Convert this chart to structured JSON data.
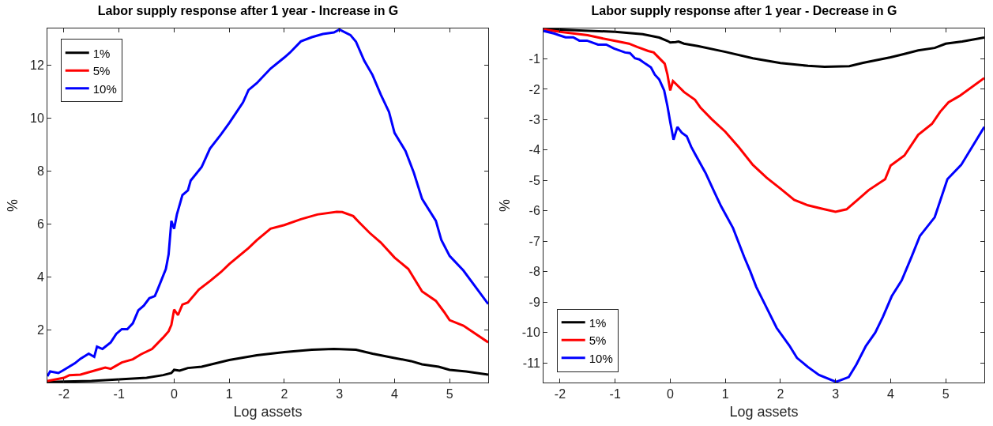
{
  "chart_data": [
    {
      "type": "line",
      "title": "Labor supply response after 1 year - Increase in G",
      "xlabel": "Log assets",
      "ylabel": "%",
      "xlim": [
        -2.3,
        5.7
      ],
      "xticks": [
        -2,
        -1,
        0,
        1,
        2,
        3,
        4,
        5
      ],
      "ylim": [
        0,
        13.4
      ],
      "yticks": [
        2,
        4,
        6,
        8,
        10,
        12
      ],
      "grid": false,
      "legend": "top left",
      "marker": "none",
      "line_style": "solid",
      "series": [
        {
          "name": "1%",
          "color": "#000000",
          "x": [
            -2.3,
            -1.5,
            -1,
            -0.5,
            -0.2,
            -0.05,
            0,
            0.1,
            0.25,
            0.5,
            1,
            1.5,
            2,
            2.5,
            2.9,
            3.3,
            3.6,
            4,
            4.3,
            4.5,
            4.8,
            5,
            5.3,
            5.7
          ],
          "values": [
            0.02,
            0.06,
            0.12,
            0.18,
            0.28,
            0.36,
            0.48,
            0.45,
            0.55,
            0.6,
            0.85,
            1.03,
            1.15,
            1.24,
            1.27,
            1.24,
            1.09,
            0.93,
            0.81,
            0.69,
            0.6,
            0.48,
            0.42,
            0.3
          ]
        },
        {
          "name": "5%",
          "color": "#ff0000",
          "x": [
            -2.3,
            -2,
            -1.9,
            -1.7,
            -1.5,
            -1.25,
            -1.15,
            -0.95,
            -0.75,
            -0.6,
            -0.4,
            -0.2,
            -0.1,
            -0.05,
            0,
            0.07,
            0.15,
            0.25,
            0.45,
            0.65,
            0.85,
            1,
            1.35,
            1.5,
            1.75,
            2,
            2.3,
            2.6,
            2.95,
            3.05,
            3.25,
            3.35,
            3.55,
            3.75,
            4,
            4.25,
            4.5,
            4.75,
            4.9,
            5,
            5.25,
            5.7
          ],
          "values": [
            0.06,
            0.18,
            0.28,
            0.3,
            0.42,
            0.57,
            0.52,
            0.76,
            0.88,
            1.07,
            1.27,
            1.7,
            1.94,
            2.18,
            2.76,
            2.55,
            2.95,
            3.03,
            3.52,
            3.84,
            4.18,
            4.48,
            5.09,
            5.39,
            5.82,
            5.96,
            6.18,
            6.36,
            6.46,
            6.45,
            6.3,
            6.08,
            5.66,
            5.3,
            4.73,
            4.3,
            3.45,
            3.09,
            2.67,
            2.36,
            2.15,
            1.52
          ]
        },
        {
          "name": "10%",
          "color": "#0000ff",
          "x": [
            -2.3,
            -2.25,
            -2.1,
            -2,
            -1.8,
            -1.7,
            -1.55,
            -1.45,
            -1.4,
            -1.3,
            -1.15,
            -1.05,
            -0.95,
            -0.85,
            -0.75,
            -0.65,
            -0.55,
            -0.45,
            -0.35,
            -0.3,
            -0.15,
            -0.1,
            -0.05,
            0,
            0.05,
            0.15,
            0.25,
            0.3,
            0.5,
            0.65,
            0.85,
            1,
            1.25,
            1.35,
            1.5,
            1.75,
            2,
            2.1,
            2.3,
            2.5,
            2.7,
            2.9,
            3,
            3.2,
            3.3,
            3.45,
            3.6,
            3.75,
            3.9,
            4,
            4.2,
            4.35,
            4.5,
            4.75,
            4.85,
            5,
            5.25,
            5.7
          ],
          "values": [
            0.24,
            0.42,
            0.36,
            0.48,
            0.73,
            0.9,
            1.09,
            0.97,
            1.36,
            1.27,
            1.52,
            1.84,
            2.02,
            2.02,
            2.24,
            2.73,
            2.91,
            3.19,
            3.27,
            3.52,
            4.3,
            4.85,
            6.12,
            5.82,
            6.36,
            7.09,
            7.27,
            7.64,
            8.16,
            8.85,
            9.39,
            9.82,
            10.6,
            11.07,
            11.33,
            11.88,
            12.3,
            12.48,
            12.91,
            13.07,
            13.19,
            13.25,
            13.36,
            13.15,
            12.9,
            12.18,
            11.64,
            10.9,
            10.24,
            9.45,
            8.76,
            7.94,
            6.95,
            6.12,
            5.39,
            4.79,
            4.24,
            2.97
          ]
        }
      ]
    },
    {
      "type": "line",
      "title": "Labor supply response after 1 year - Decrease in G",
      "xlabel": "Log assets",
      "ylabel": "%",
      "xlim": [
        -2.3,
        5.7
      ],
      "xticks": [
        -2,
        -1,
        0,
        1,
        2,
        3,
        4,
        5
      ],
      "ylim": [
        -11.65,
        0
      ],
      "yticks": [
        -11,
        -10,
        -9,
        -8,
        -7,
        -6,
        -5,
        -4,
        -3,
        -2,
        -1
      ],
      "grid": false,
      "legend": "bottom left",
      "marker": "none",
      "line_style": "solid",
      "series": [
        {
          "name": "1%",
          "color": "#000000",
          "x": [
            -2.3,
            -2,
            -1,
            -0.5,
            -0.2,
            -0.05,
            0,
            0.1,
            0.15,
            0.25,
            0.5,
            1,
            1.5,
            2,
            2.5,
            2.8,
            3.25,
            3.5,
            4,
            4.25,
            4.5,
            4.8,
            5,
            5.3,
            5.7
          ],
          "values": [
            -0.01,
            -0.04,
            -0.11,
            -0.19,
            -0.3,
            -0.41,
            -0.46,
            -0.45,
            -0.43,
            -0.5,
            -0.58,
            -0.77,
            -0.98,
            -1.14,
            -1.23,
            -1.26,
            -1.24,
            -1.13,
            -0.95,
            -0.84,
            -0.72,
            -0.64,
            -0.5,
            -0.43,
            -0.3
          ]
        },
        {
          "name": "5%",
          "color": "#ff0000",
          "x": [
            -2.3,
            -2,
            -1.5,
            -1.25,
            -1,
            -0.75,
            -0.6,
            -0.4,
            -0.3,
            -0.1,
            -0.05,
            0,
            0.05,
            0.25,
            0.45,
            0.55,
            0.75,
            1,
            1.25,
            1.5,
            1.75,
            2,
            2.25,
            2.5,
            2.75,
            3,
            3.2,
            3.4,
            3.6,
            3.9,
            4,
            4.25,
            4.5,
            4.75,
            4.9,
            5.05,
            5.25,
            5.7
          ],
          "values": [
            -0.03,
            -0.11,
            -0.22,
            -0.32,
            -0.41,
            -0.5,
            -0.61,
            -0.74,
            -0.79,
            -1.16,
            -1.52,
            -2.04,
            -1.73,
            -2.09,
            -2.35,
            -2.61,
            -2.98,
            -3.4,
            -3.92,
            -4.49,
            -4.91,
            -5.27,
            -5.64,
            -5.82,
            -5.93,
            -6.03,
            -5.95,
            -5.64,
            -5.32,
            -4.96,
            -4.51,
            -4.18,
            -3.5,
            -3.14,
            -2.74,
            -2.43,
            -2.22,
            -1.63
          ]
        },
        {
          "name": "10%",
          "color": "#0000ff",
          "x": [
            -2.3,
            -2.1,
            -2.02,
            -1.9,
            -1.76,
            -1.65,
            -1.51,
            -1.31,
            -1.16,
            -1.02,
            -0.82,
            -0.73,
            -0.64,
            -0.56,
            -0.45,
            -0.35,
            -0.28,
            -0.2,
            -0.11,
            -0.05,
            0,
            0.06,
            0.13,
            0.21,
            0.3,
            0.38,
            0.45,
            0.64,
            0.8,
            0.92,
            1.14,
            1.34,
            1.45,
            1.56,
            1.76,
            1.93,
            2.16,
            2.3,
            2.5,
            2.7,
            3.01,
            3.24,
            3.38,
            3.55,
            3.72,
            3.86,
            4.02,
            4.2,
            4.38,
            4.53,
            4.8,
            5.03,
            5.28,
            5.7
          ],
          "values": [
            -0.08,
            -0.17,
            -0.22,
            -0.29,
            -0.29,
            -0.4,
            -0.4,
            -0.53,
            -0.53,
            -0.66,
            -0.79,
            -0.81,
            -0.98,
            -1.02,
            -1.16,
            -1.28,
            -1.52,
            -1.68,
            -2.04,
            -2.56,
            -3.08,
            -3.66,
            -3.24,
            -3.43,
            -3.55,
            -3.89,
            -4.13,
            -4.75,
            -5.38,
            -5.84,
            -6.57,
            -7.51,
            -7.98,
            -8.5,
            -9.23,
            -9.85,
            -10.43,
            -10.84,
            -11.14,
            -11.4,
            -11.63,
            -11.47,
            -11.05,
            -10.45,
            -10.01,
            -9.49,
            -8.81,
            -8.29,
            -7.51,
            -6.83,
            -6.21,
            -4.96,
            -4.49,
            -3.24
          ]
        }
      ]
    }
  ]
}
